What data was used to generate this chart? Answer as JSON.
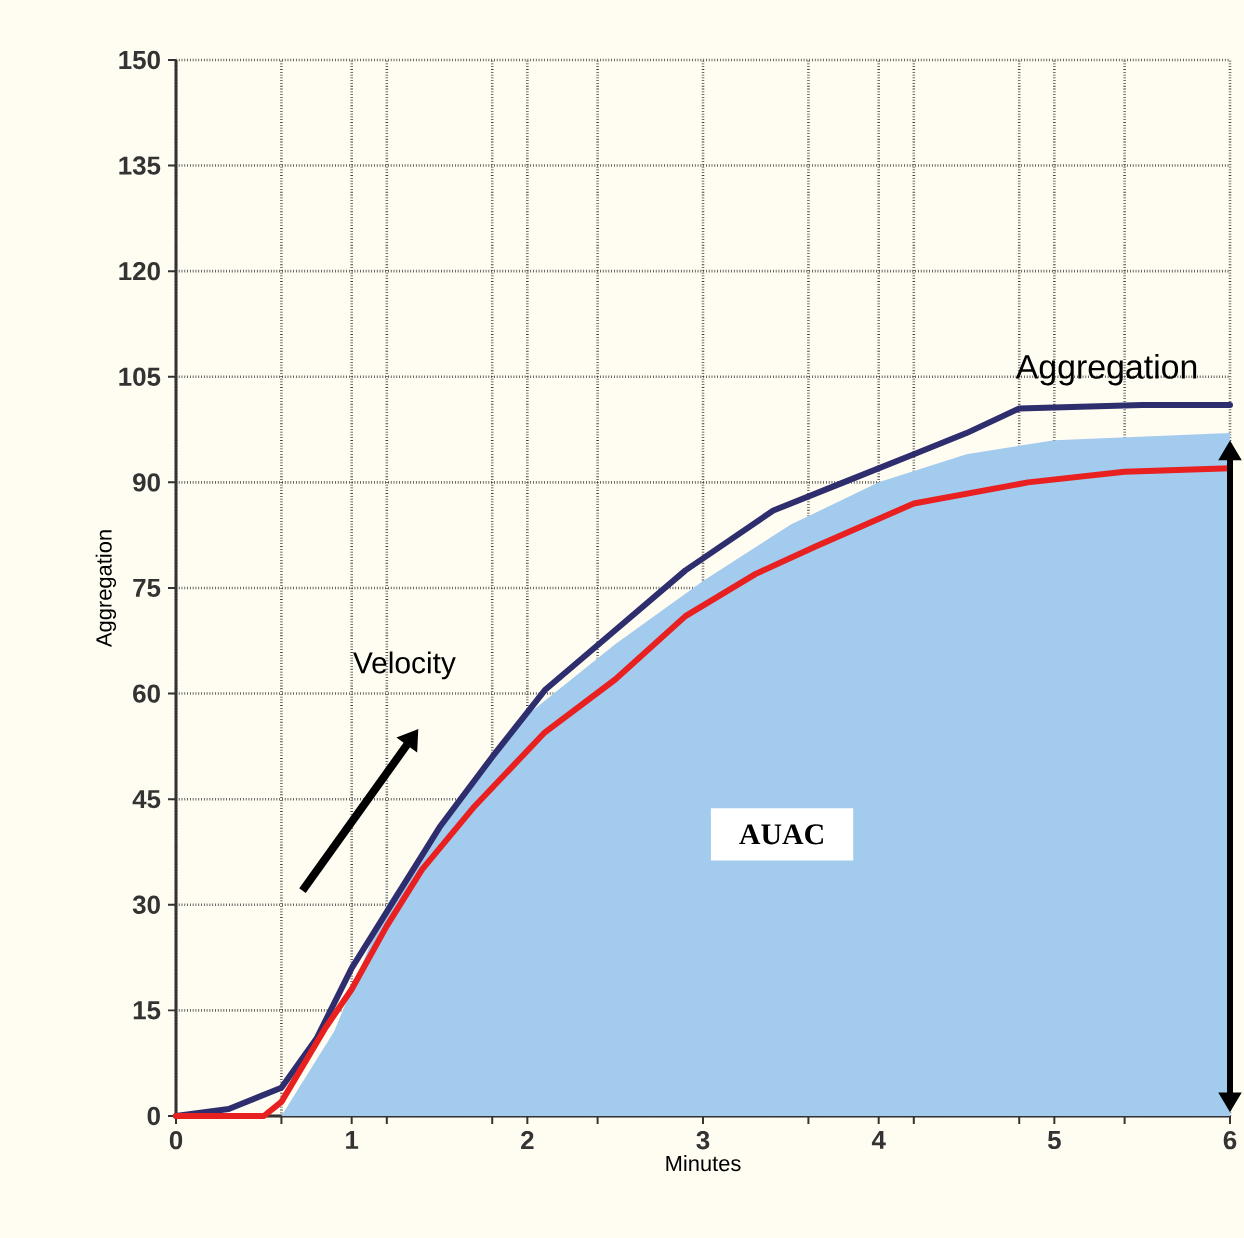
{
  "chart_data": {
    "type": "line",
    "xlabel": "Minutes",
    "ylabel": "Aggregation",
    "xlim": [
      0,
      6
    ],
    "ylim": [
      0,
      150
    ],
    "xticks": [
      0,
      {
        "value": 0.6,
        "label": null
      },
      1,
      {
        "value": 1.2,
        "label": null
      },
      {
        "value": 1.8,
        "label": null
      },
      2,
      {
        "value": 2.4,
        "label": null
      },
      3,
      {
        "value": 3.6,
        "label": null
      },
      4,
      {
        "value": 4.2,
        "label": null
      },
      {
        "value": 4.8,
        "label": null
      },
      5,
      {
        "value": 5.4,
        "label": null
      },
      6
    ],
    "yticks": [
      0,
      15,
      30,
      45,
      60,
      75,
      90,
      105,
      120,
      135,
      150
    ],
    "grid": true,
    "series": [
      {
        "type": "area",
        "color": "#a3cbee",
        "x": [
          0,
          0.6,
          0.9,
          1.2,
          1.6,
          2.0,
          2.5,
          3.0,
          3.5,
          4.0,
          4.5,
          5.0,
          6.0
        ],
        "values": [
          0,
          0,
          12,
          30,
          45,
          57,
          67,
          76,
          84,
          90,
          94,
          96,
          97
        ]
      },
      {
        "color": "#2e2e6e",
        "x": [
          0,
          0.3,
          0.6,
          0.8,
          1.0,
          1.3,
          1.5,
          1.8,
          2.1,
          2.5,
          2.9,
          3.4,
          3.8,
          4.2,
          4.5,
          4.8,
          5.5,
          6
        ],
        "values": [
          0,
          1,
          4,
          11,
          21,
          33,
          41,
          51,
          60.5,
          69,
          77.5,
          86,
          90,
          94,
          97,
          100.5,
          101,
          101
        ]
      },
      {
        "color": "#e82020",
        "x": [
          0,
          0.5,
          0.6,
          0.85,
          1.0,
          1.2,
          1.4,
          1.7,
          2.1,
          2.5,
          2.9,
          3.3,
          3.65,
          4.2,
          4.85,
          5.4,
          6
        ],
        "values": [
          0,
          0,
          2,
          12.5,
          18,
          27,
          35,
          44,
          54.5,
          62,
          71,
          77,
          81,
          87,
          90,
          91.5,
          92
        ]
      }
    ],
    "annotations": [
      "Velocity",
      "Aggregation",
      "AUAC"
    ]
  }
}
